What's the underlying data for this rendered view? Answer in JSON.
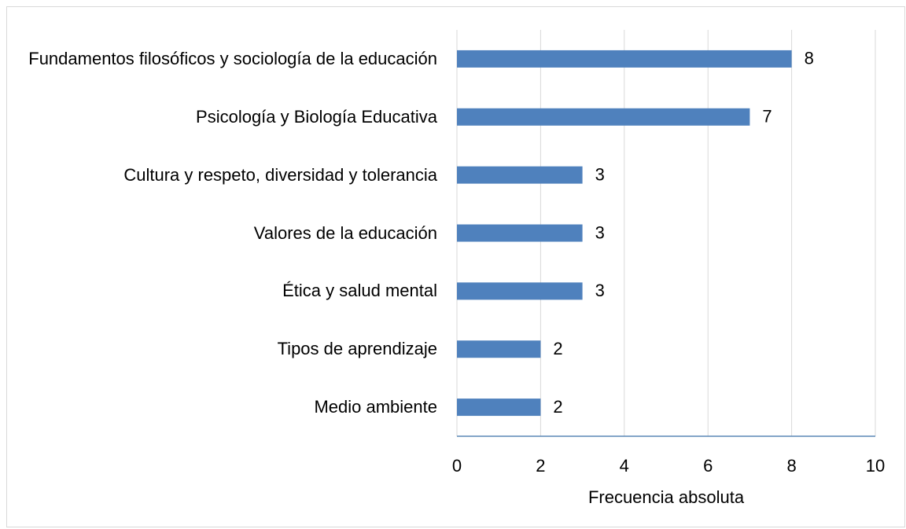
{
  "chart_data": {
    "type": "bar",
    "orientation": "horizontal",
    "x_label": "Frecuencia absoluta",
    "categories": [
      "Fundamentos filosóficos y sociología de la educación",
      "Psicología y Biología Educativa",
      "Cultura y respeto, diversidad y tolerancia",
      "Valores de la educación",
      "Ética y salud mental",
      "Tipos de aprendizaje",
      "Medio ambiente"
    ],
    "values": [
      8,
      7,
      3,
      3,
      3,
      2,
      2
    ],
    "color": "#4f81bd",
    "xlim": [
      0,
      10
    ],
    "xticks": [
      0,
      2,
      4,
      6,
      8,
      10
    ],
    "grid": true
  }
}
